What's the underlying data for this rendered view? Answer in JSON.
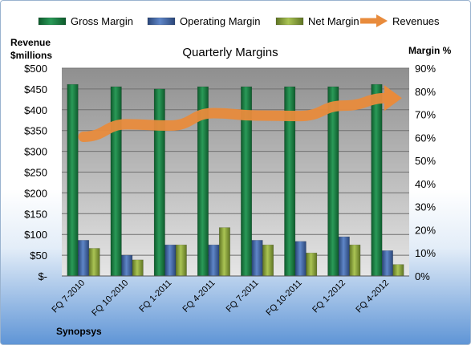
{
  "chart_data": {
    "type": "bar",
    "title": "Quarterly Margins",
    "company": "Synopsys",
    "left_axis_label_line1": "Revenue",
    "left_axis_label_line2": "$millions",
    "right_axis_label": "Margin %",
    "categories": [
      "FQ 7-2010",
      "FQ 10-2010",
      "FQ 1-2011",
      "FQ 4-2011",
      "FQ 7-2011",
      "FQ 10-2011",
      "FQ 1-2012",
      "FQ 4-2012"
    ],
    "left_ylim": [
      0,
      500
    ],
    "left_ticks": [
      "$-",
      "$50",
      "$100",
      "$150",
      "$200",
      "$250",
      "$300",
      "$350",
      "$400",
      "$450",
      "$500"
    ],
    "right_ylim": [
      0,
      0.9
    ],
    "right_ticks": [
      "0%",
      "10%",
      "20%",
      "30%",
      "40%",
      "50%",
      "60%",
      "70%",
      "80%",
      "90%"
    ],
    "series": [
      {
        "name": "Gross Margin",
        "axis": "right",
        "color": "#1e7c45",
        "values": [
          0.83,
          0.82,
          0.81,
          0.82,
          0.82,
          0.82,
          0.82,
          0.83
        ]
      },
      {
        "name": "Operating Margin",
        "axis": "right",
        "color": "#3e63a8",
        "values": [
          0.155,
          0.09,
          0.135,
          0.135,
          0.155,
          0.15,
          0.17,
          0.11
        ]
      },
      {
        "name": "Net Margin",
        "axis": "right",
        "color": "#8faa3a",
        "values": [
          0.12,
          0.07,
          0.135,
          0.21,
          0.135,
          0.1,
          0.135,
          0.05
        ]
      },
      {
        "name": "Revenues",
        "axis": "left",
        "color": "#e88b3c",
        "values": [
          335,
          365,
          362,
          392,
          386,
          385,
          410,
          428
        ]
      }
    ],
    "grid": true,
    "legend_position": "top"
  }
}
